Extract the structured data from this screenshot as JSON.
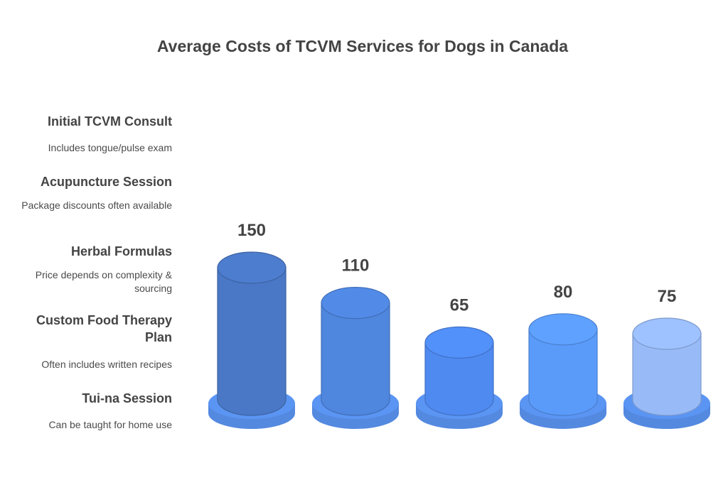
{
  "chart_data": {
    "type": "bar",
    "title": "Average Costs of TCVM Services for Dogs in Canada",
    "categories": [
      "Initial TCVM Consult",
      "Acupuncture Session",
      "Herbal Formulas",
      "Custom Food Therapy Plan",
      "Tui-na Session"
    ],
    "descriptions": [
      "Includes tongue/pulse exam",
      "Package discounts often available",
      "Price depends on complexity & sourcing",
      "Often includes written recipes",
      "Can be taught for home use"
    ],
    "values": [
      150,
      110,
      65,
      80,
      75
    ],
    "colors": [
      "#4a78c6",
      "#4f86de",
      "#4f8af0",
      "#5a9bfa",
      "#98bbf8"
    ],
    "base_color": "#5b95f3",
    "grid": false
  }
}
